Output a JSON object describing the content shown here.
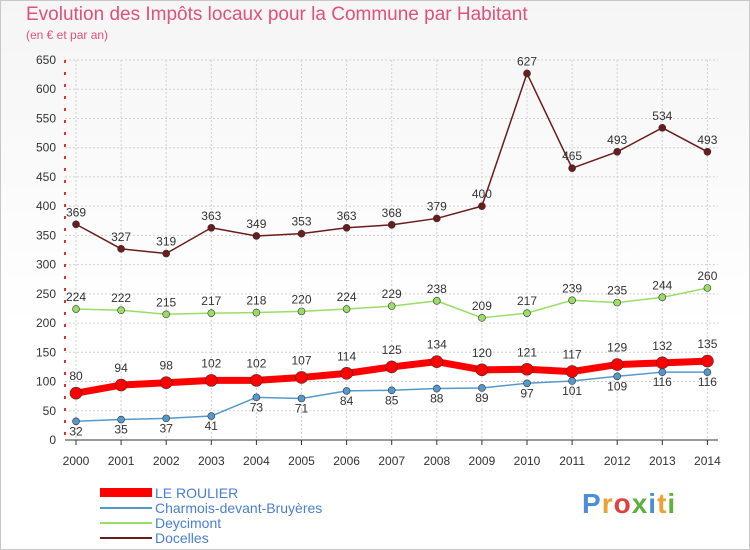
{
  "header": {
    "title": "Evolution des Impôts locaux pour la Commune par Habitant",
    "subtitle": "(en € et par an)"
  },
  "chart_data": {
    "type": "line",
    "categories": [
      "2000",
      "2001",
      "2002",
      "2003",
      "2004",
      "2005",
      "2006",
      "2007",
      "2008",
      "2009",
      "2010",
      "2011",
      "2012",
      "2013",
      "2014"
    ],
    "ylim": [
      0,
      650
    ],
    "yticks": [
      0,
      50,
      100,
      150,
      200,
      250,
      300,
      350,
      400,
      450,
      500,
      550,
      600,
      650
    ],
    "grid": true,
    "legend_position": "bottom-left",
    "series": [
      {
        "name": "Docelles",
        "color": "#6b1c1c",
        "values": [
          369,
          327,
          319,
          363,
          349,
          353,
          363,
          368,
          379,
          400,
          627,
          465,
          493,
          534,
          493
        ]
      },
      {
        "name": "Deycimont",
        "color": "#99dd66",
        "values": [
          224,
          222,
          215,
          217,
          218,
          220,
          224,
          229,
          238,
          209,
          217,
          239,
          235,
          244,
          260
        ]
      },
      {
        "name": "Charmois-devant-Bruyères",
        "color": "#5599cc",
        "values": [
          32,
          35,
          37,
          41,
          73,
          71,
          84,
          85,
          88,
          89,
          97,
          101,
          109,
          116,
          116
        ]
      },
      {
        "name": "LE ROULIER",
        "color": "#ff0000",
        "values": [
          80,
          94,
          98,
          102,
          102,
          107,
          114,
          125,
          134,
          120,
          121,
          117,
          129,
          132,
          135
        ]
      }
    ]
  },
  "legend": {
    "items": [
      {
        "label": "LE ROULIER",
        "color": "#ff0000"
      },
      {
        "label": "Charmois-devant-Bruyères",
        "color": "#5599cc"
      },
      {
        "label": "Deycimont",
        "color": "#99dd66"
      },
      {
        "label": "Docelles",
        "color": "#6b1c1c"
      }
    ]
  },
  "logo": {
    "text": "Proxiti"
  }
}
